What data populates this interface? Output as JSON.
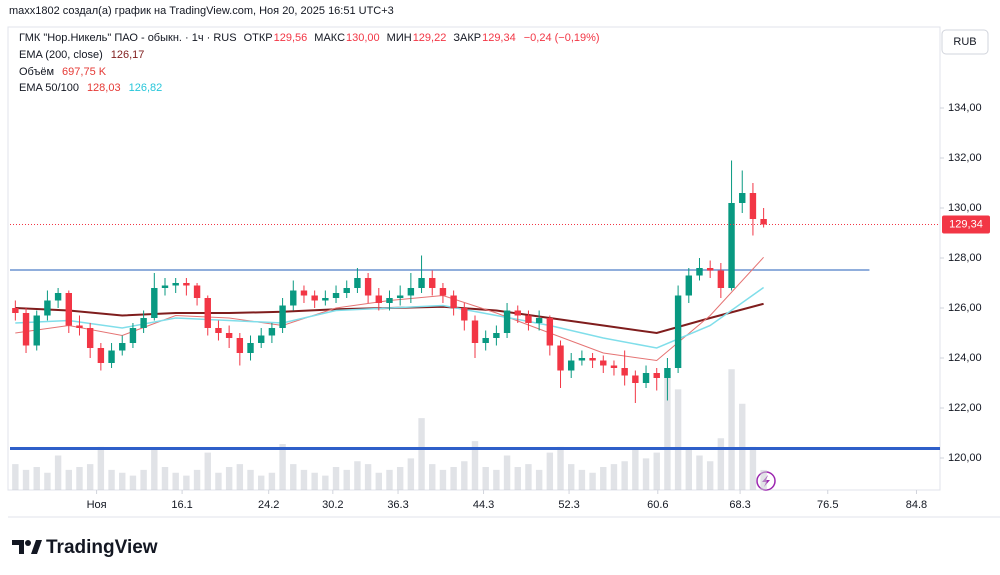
{
  "header": {
    "author_line": "maxx1802 создал(а) график на TradingView.com, Ноя 20, 2025 16:51 UTC+3"
  },
  "chart_data": {
    "type": "candlestick",
    "title": "ГМК \"Нор.Никель\" ПАО - обыкн. · 1ч · RUS",
    "ohlc_legend": [
      {
        "label": "ОТКР",
        "value": "129,56"
      },
      {
        "label": "МАКС",
        "value": "130,00"
      },
      {
        "label": "МИН",
        "value": "129,22"
      },
      {
        "label": "ЗАКР",
        "value": "129,34"
      }
    ],
    "change_label": "−0,24 (−0,19%)",
    "legend_value_color": "#f23645",
    "currency": "RUB",
    "up_color": "#089981",
    "down_color": "#f23645",
    "open": [
      126.0,
      125.8,
      124.5,
      125.7,
      126.3,
      126.6,
      125.3,
      125.2,
      124.4,
      123.8,
      124.3,
      124.6,
      125.2,
      125.6,
      126.8,
      126.9,
      127.0,
      126.9,
      126.4,
      125.2,
      125.0,
      124.8,
      124.2,
      124.6,
      124.9,
      125.2,
      126.1,
      126.7,
      126.5,
      126.3,
      126.4,
      126.6,
      126.8,
      127.2,
      126.5,
      126.2,
      126.4,
      126.5,
      126.8,
      127.2,
      126.8,
      126.5,
      126.0,
      125.5,
      124.6,
      124.8,
      125.0,
      125.9,
      125.7,
      125.4,
      125.6,
      124.5,
      123.5,
      123.9,
      124.0,
      123.9,
      123.7,
      123.6,
      123.3,
      123.0,
      123.4,
      123.2,
      123.6,
      126.5,
      127.3,
      127.6,
      127.5,
      126.8,
      130.2,
      130.6,
      129.56
    ],
    "high": [
      126.3,
      126.0,
      125.9,
      126.7,
      126.8,
      126.7,
      125.7,
      125.4,
      124.6,
      124.6,
      124.9,
      125.4,
      125.9,
      127.4,
      127.2,
      127.2,
      127.2,
      127.0,
      126.5,
      125.5,
      125.3,
      125.0,
      124.9,
      125.2,
      125.4,
      126.4,
      127.1,
      126.9,
      126.7,
      126.7,
      126.9,
      127.1,
      127.6,
      127.4,
      126.8,
      126.7,
      126.9,
      127.4,
      128.1,
      127.5,
      127.0,
      126.7,
      126.2,
      125.7,
      125.1,
      125.3,
      126.2,
      126.1,
      125.9,
      125.9,
      125.7,
      124.7,
      124.2,
      124.3,
      124.2,
      124.1,
      123.9,
      124.3,
      123.5,
      123.7,
      123.6,
      124.0,
      126.9,
      127.6,
      128.0,
      127.9,
      127.8,
      131.9,
      131.5,
      131.0,
      130.0
    ],
    "low": [
      125.5,
      124.2,
      124.3,
      125.5,
      126.0,
      125.0,
      124.9,
      124.0,
      123.5,
      123.6,
      124.1,
      124.4,
      125.0,
      125.5,
      126.5,
      126.6,
      126.5,
      126.1,
      124.9,
      124.7,
      124.4,
      123.7,
      123.9,
      124.4,
      124.6,
      125.0,
      125.9,
      126.2,
      126.0,
      126.1,
      126.2,
      126.4,
      126.6,
      126.2,
      125.9,
      125.9,
      126.1,
      126.2,
      126.6,
      126.5,
      126.2,
      125.7,
      125.1,
      124.0,
      124.3,
      124.5,
      124.8,
      125.4,
      125.1,
      125.1,
      124.1,
      122.8,
      123.2,
      123.7,
      123.6,
      123.4,
      123.3,
      122.9,
      122.2,
      122.8,
      122.7,
      122.3,
      123.4,
      126.2,
      127.1,
      127.2,
      126.4,
      126.7,
      129.8,
      128.9,
      129.22
    ],
    "close": [
      125.8,
      124.5,
      125.7,
      126.3,
      126.6,
      125.3,
      125.2,
      124.4,
      123.8,
      124.3,
      124.6,
      125.2,
      125.6,
      126.8,
      126.9,
      127.0,
      126.9,
      126.4,
      125.2,
      125.0,
      124.8,
      124.2,
      124.6,
      124.9,
      125.2,
      126.1,
      126.7,
      126.5,
      126.3,
      126.4,
      126.6,
      126.8,
      127.2,
      126.5,
      126.2,
      126.4,
      126.5,
      126.8,
      127.2,
      126.8,
      126.5,
      126.0,
      125.5,
      124.6,
      124.8,
      125.0,
      125.9,
      125.7,
      125.4,
      125.6,
      124.5,
      123.5,
      123.9,
      124.0,
      123.9,
      123.7,
      123.6,
      123.3,
      123.0,
      123.4,
      123.2,
      123.6,
      126.5,
      127.3,
      127.6,
      127.5,
      126.8,
      130.2,
      130.6,
      129.56,
      129.34
    ],
    "last_price_label": "129,34",
    "volume": {
      "name": "Объём",
      "last_label": "697,75 K",
      "color": "#c9ccd4",
      "ylim": [
        0,
        16000
      ],
      "values": [
        900,
        700,
        800,
        600,
        1200,
        700,
        800,
        900,
        1500,
        700,
        600,
        500,
        700,
        1400,
        800,
        600,
        500,
        700,
        1300,
        600,
        800,
        900,
        700,
        500,
        600,
        1600,
        900,
        700,
        600,
        500,
        800,
        700,
        1000,
        900,
        600,
        700,
        800,
        1100,
        2500,
        900,
        700,
        800,
        1000,
        1700,
        800,
        700,
        1200,
        800,
        900,
        700,
        1300,
        1500,
        900,
        700,
        600,
        800,
        900,
        1000,
        1400,
        1100,
        1300,
        4000,
        3500,
        1400,
        1200,
        1000,
        1800,
        4200,
        3000,
        1500,
        697.75
      ]
    },
    "indicators": [
      {
        "name": "EMA (200, close)",
        "last_labels": [
          "126,17"
        ],
        "lines": [
          {
            "color": "#7f1d1d",
            "width": 2,
            "values": [
              126.0,
              125.9,
              125.7,
              125.8,
              125.8,
              125.85,
              125.95,
              126.0,
              126.05,
              125.9,
              125.6,
              125.3,
              125.0,
              125.6,
              126.17
            ]
          }
        ]
      },
      {
        "name": "EMA 50/100",
        "last_labels": [
          "128,03",
          "126,82"
        ],
        "lines": [
          {
            "color": "#e57373",
            "width": 1,
            "values": [
              125.0,
              125.3,
              124.9,
              125.7,
              125.6,
              125.3,
              126.0,
              126.3,
              126.5,
              125.8,
              125.0,
              124.2,
              123.9,
              125.7,
              128.03
            ]
          },
          {
            "color": "#80deea",
            "width": 1.5,
            "values": [
              125.4,
              125.5,
              125.2,
              125.6,
              125.5,
              125.4,
              125.9,
              126.0,
              126.1,
              125.7,
              125.3,
              124.8,
              124.4,
              125.3,
              126.82
            ]
          }
        ]
      }
    ],
    "ema_x": [
      0,
      5,
      10,
      15,
      20,
      25,
      30,
      35,
      40,
      45,
      50,
      55,
      60,
      65,
      70
    ],
    "hlines": [
      {
        "value": 127.52,
        "color": "#6c93d1",
        "width": 1.5,
        "x_range": [
          0,
          80.4
        ]
      },
      {
        "value": 120.38,
        "color": "#2e5fc9",
        "width": 3,
        "x_range": [
          0,
          87
        ]
      }
    ],
    "xlim": [
      0,
      87
    ],
    "ylim": [
      118.72,
      137.12
    ],
    "xticks": [
      {
        "value": 8.1,
        "label": "Ноя"
      },
      16.1,
      24.2,
      30.2,
      36.3,
      44.3,
      52.3,
      60.6,
      68.3,
      76.5,
      84.8
    ],
    "yticks": [
      {
        "value": 120,
        "label": "120,00"
      },
      {
        "value": 122,
        "label": "122,00"
      },
      {
        "value": 124,
        "label": "124,00"
      },
      {
        "value": 126,
        "label": "126,00"
      },
      {
        "value": 128,
        "label": "128,00"
      },
      {
        "value": 130,
        "label": "130,00"
      },
      {
        "value": 132,
        "label": "132,00"
      },
      {
        "value": 134,
        "label": "134,00"
      }
    ],
    "grid": false
  },
  "footer": {
    "brand": "TradingView"
  }
}
